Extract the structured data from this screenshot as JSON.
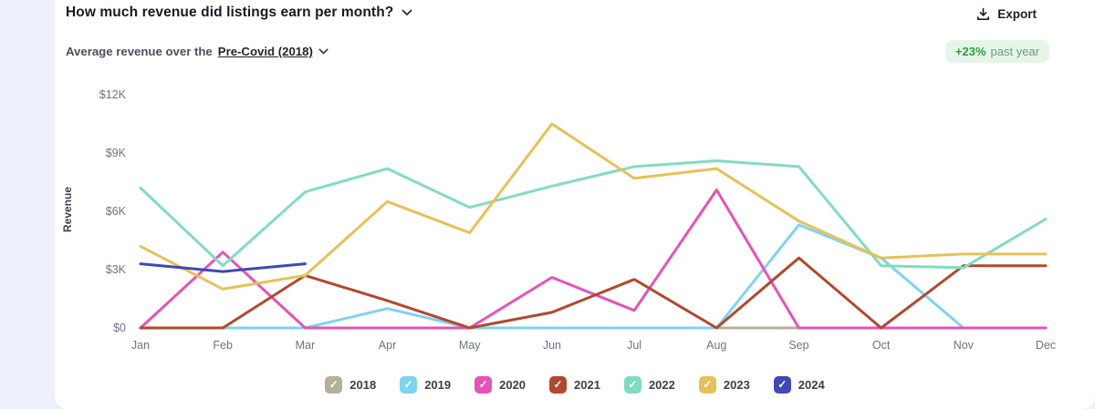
{
  "page": {
    "background": "#edeffa",
    "card_background": "#ffffff"
  },
  "header": {
    "title": "How much revenue did listings earn per month?",
    "export_label": "Export"
  },
  "subheader": {
    "prefix": "Average revenue over the",
    "period": "Pre-Covid (2018)",
    "badge": {
      "value": "+23%",
      "label": "past year",
      "bg": "#e5f6e9",
      "value_color": "#2f9e44",
      "label_color": "#71997d"
    }
  },
  "legend": {
    "check_glyph": "✓"
  },
  "chart_data": {
    "type": "line",
    "title": "How much revenue did listings earn per month?",
    "xlabel": "",
    "ylabel": "Revenue",
    "x": [
      "Jan",
      "Feb",
      "Mar",
      "Apr",
      "May",
      "Jun",
      "Jul",
      "Aug",
      "Sep",
      "Oct",
      "Nov",
      "Dec"
    ],
    "ylim": [
      0,
      12000
    ],
    "y_ticks": [
      {
        "value": 0,
        "label": "$0"
      },
      {
        "value": 3000,
        "label": "$3K"
      },
      {
        "value": 6000,
        "label": "$6K"
      },
      {
        "value": 9000,
        "label": "$9K"
      },
      {
        "value": 12000,
        "label": "$12K"
      }
    ],
    "grid": false,
    "legend_position": "bottom",
    "series": [
      {
        "name": "2018",
        "color": "#b4b09a",
        "checked": true,
        "values": [
          0,
          0,
          0,
          0,
          0,
          0,
          0,
          0,
          0,
          0,
          0,
          0
        ]
      },
      {
        "name": "2019",
        "color": "#7ed3f0",
        "checked": true,
        "values": [
          0,
          0,
          0,
          1000,
          0,
          0,
          0,
          0,
          5300,
          3600,
          0,
          0
        ]
      },
      {
        "name": "2020",
        "color": "#e553b7",
        "checked": true,
        "values": [
          0,
          3900,
          0,
          0,
          0,
          2600,
          900,
          7100,
          0,
          0,
          0,
          0
        ]
      },
      {
        "name": "2021",
        "color": "#b0492f",
        "checked": true,
        "values": [
          0,
          0,
          2700,
          1400,
          0,
          800,
          2500,
          0,
          3600,
          0,
          3200,
          3200
        ]
      },
      {
        "name": "2022",
        "color": "#81dcc0",
        "checked": true,
        "values": [
          7200,
          3200,
          7000,
          8200,
          6200,
          7300,
          8300,
          8600,
          8300,
          3200,
          3100,
          5600
        ]
      },
      {
        "name": "2023",
        "color": "#e6c15a",
        "checked": true,
        "values": [
          4200,
          2000,
          2700,
          6500,
          4900,
          10500,
          7700,
          8200,
          5500,
          3600,
          3800,
          3800
        ]
      },
      {
        "name": "2024",
        "color": "#3e49b3",
        "checked": true,
        "values": [
          3300,
          2900,
          3300,
          null,
          null,
          null,
          null,
          null,
          null,
          null,
          null,
          null
        ]
      }
    ]
  }
}
